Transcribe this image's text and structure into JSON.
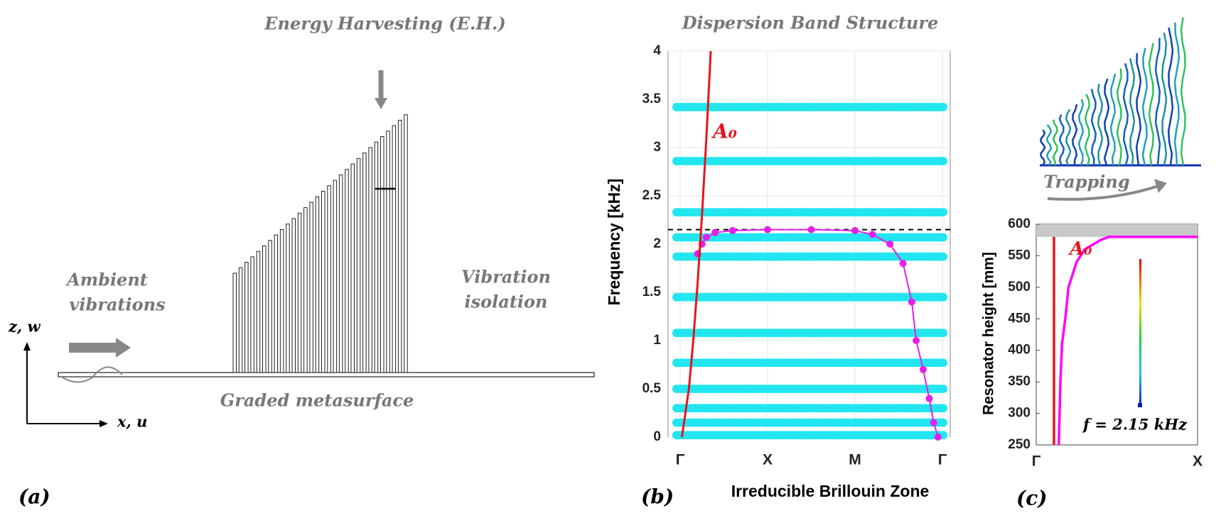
{
  "panel_a": {
    "label": "(a)",
    "title": "Energy Harvesting (E.H.)",
    "source": [
      "Ambient",
      "vibrations"
    ],
    "isolation": [
      "Vibration",
      "isolation"
    ],
    "caption": "Graded metasurface",
    "z_axis": "z, w",
    "x_axis": "x, u"
  },
  "inset": {
    "caption": "Trapping"
  },
  "chart_data": [
    {
      "type": "band",
      "label": "(b)",
      "title": "Dispersion Band Structure",
      "xlabel": "Irreducible Brillouin Zone",
      "ylabel": "Frequency [kHz]",
      "categories": [
        "Γ",
        "X",
        "M",
        "Γ"
      ],
      "ylim": [
        0,
        4
      ],
      "yticks": [
        0,
        0.5,
        1,
        1.5,
        2,
        2.5,
        3,
        3.5,
        4
      ],
      "grid": true,
      "flat_bands": {
        "color": "#22e6ef",
        "values": [
          0.02,
          0.15,
          0.3,
          0.5,
          0.77,
          1.08,
          1.45,
          1.87,
          2.07,
          2.33,
          2.86,
          3.42
        ]
      },
      "series": [
        {
          "color": "#e51fe8",
          "x": [
            0.2,
            0.25,
            0.3,
            0.4,
            0.6,
            1.0,
            1.5,
            2.0,
            2.2,
            2.4,
            2.55,
            2.65,
            2.7,
            2.78,
            2.85,
            2.9,
            2.95
          ],
          "values": [
            1.9,
            2.0,
            2.07,
            2.12,
            2.14,
            2.15,
            2.15,
            2.14,
            2.1,
            2.0,
            1.8,
            1.4,
            1.0,
            0.7,
            0.4,
            0.15,
            0.0
          ]
        },
        {
          "color": "#e8141c",
          "x": [
            0.02,
            0.1,
            0.15,
            0.2,
            0.25,
            0.3,
            0.35
          ],
          "values": [
            0,
            0.5,
            1,
            1.6,
            2.3,
            3.1,
            4
          ]
        }
      ],
      "reference": {
        "value": 2.15,
        "color": "#000000"
      },
      "annotation": "A₀"
    },
    {
      "type": "line",
      "label": "(c)",
      "ylabel": "Resonator height [mm]",
      "categories": [
        "Γ",
        "X"
      ],
      "ylim": [
        250,
        600
      ],
      "yticks": [
        250,
        300,
        350,
        400,
        450,
        500,
        550,
        600
      ],
      "series": [
        {
          "color": "#ff00ff",
          "x": [
            0.14,
            0.145,
            0.15,
            0.16,
            0.18,
            0.2,
            0.25,
            0.3,
            0.4,
            0.45,
            1.0
          ],
          "values": [
            250,
            300,
            350,
            410,
            450,
            500,
            540,
            560,
            575,
            580,
            580
          ]
        },
        {
          "color": "#e8141c",
          "x": [
            0.11,
            0.11
          ],
          "values": [
            250,
            580
          ]
        }
      ],
      "limit_band": [
        580,
        600
      ],
      "annotation": "A₀",
      "note": "f = 2.15 kHz"
    }
  ]
}
